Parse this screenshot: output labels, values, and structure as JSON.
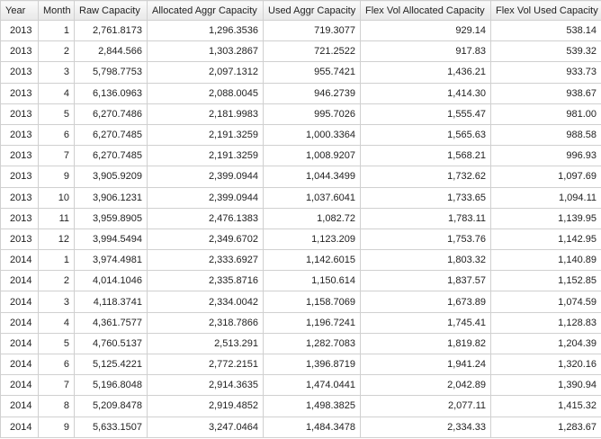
{
  "table": {
    "columns": [
      "Year",
      "Month",
      "Raw Capacity",
      "Allocated Aggr Capacity",
      "Used Aggr Capacity",
      "Flex Vol Allocated Capacity",
      "Flex Vol Used Capacity"
    ],
    "rows": [
      [
        "2013",
        "1",
        "2,761.8173",
        "1,296.3536",
        "719.3077",
        "929.14",
        "538.14"
      ],
      [
        "2013",
        "2",
        "2,844.566",
        "1,303.2867",
        "721.2522",
        "917.83",
        "539.32"
      ],
      [
        "2013",
        "3",
        "5,798.7753",
        "2,097.1312",
        "955.7421",
        "1,436.21",
        "933.73"
      ],
      [
        "2013",
        "4",
        "6,136.0963",
        "2,088.0045",
        "946.2739",
        "1,414.30",
        "938.67"
      ],
      [
        "2013",
        "5",
        "6,270.7486",
        "2,181.9983",
        "995.7026",
        "1,555.47",
        "981.00"
      ],
      [
        "2013",
        "6",
        "6,270.7485",
        "2,191.3259",
        "1,000.3364",
        "1,565.63",
        "988.58"
      ],
      [
        "2013",
        "7",
        "6,270.7485",
        "2,191.3259",
        "1,008.9207",
        "1,568.21",
        "996.93"
      ],
      [
        "2013",
        "9",
        "3,905.9209",
        "2,399.0944",
        "1,044.3499",
        "1,732.62",
        "1,097.69"
      ],
      [
        "2013",
        "10",
        "3,906.1231",
        "2,399.0944",
        "1,037.6041",
        "1,733.65",
        "1,094.11"
      ],
      [
        "2013",
        "11",
        "3,959.8905",
        "2,476.1383",
        "1,082.72",
        "1,783.11",
        "1,139.95"
      ],
      [
        "2013",
        "12",
        "3,994.5494",
        "2,349.6702",
        "1,123.209",
        "1,753.76",
        "1,142.95"
      ],
      [
        "2014",
        "1",
        "3,974.4981",
        "2,333.6927",
        "1,142.6015",
        "1,803.32",
        "1,140.89"
      ],
      [
        "2014",
        "2",
        "4,014.1046",
        "2,335.8716",
        "1,150.614",
        "1,837.57",
        "1,152.85"
      ],
      [
        "2014",
        "3",
        "4,118.3741",
        "2,334.0042",
        "1,158.7069",
        "1,673.89",
        "1,074.59"
      ],
      [
        "2014",
        "4",
        "4,361.7577",
        "2,318.7866",
        "1,196.7241",
        "1,745.41",
        "1,128.83"
      ],
      [
        "2014",
        "5",
        "4,760.5137",
        "2,513.291",
        "1,282.7083",
        "1,819.82",
        "1,204.39"
      ],
      [
        "2014",
        "6",
        "5,125.4221",
        "2,772.2151",
        "1,396.8719",
        "1,941.24",
        "1,320.16"
      ],
      [
        "2014",
        "7",
        "5,196.8048",
        "2,914.3635",
        "1,474.0441",
        "2,042.89",
        "1,390.94"
      ],
      [
        "2014",
        "8",
        "5,209.8478",
        "2,919.4852",
        "1,498.3825",
        "2,077.11",
        "1,415.32"
      ],
      [
        "2014",
        "9",
        "5,633.1507",
        "3,247.0464",
        "1,484.3478",
        "2,334.33",
        "1,283.67"
      ]
    ]
  }
}
